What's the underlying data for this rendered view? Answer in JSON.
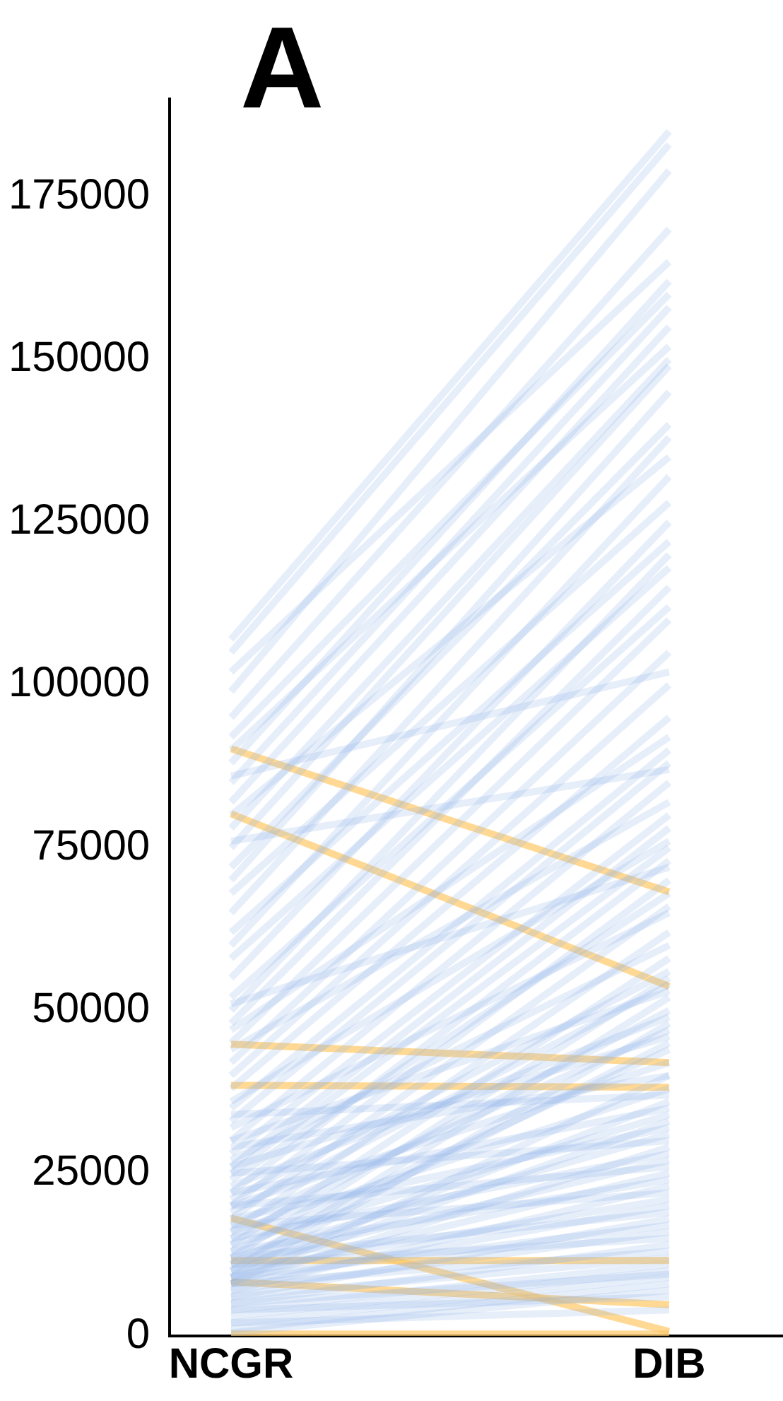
{
  "chart_data": {
    "type": "line",
    "categories": [
      "NCGR",
      "DIB"
    ],
    "annotations": [
      "A"
    ],
    "ylim": [
      0,
      190000
    ],
    "yticks": [
      0,
      25000,
      50000,
      75000,
      100000,
      125000,
      150000,
      175000
    ],
    "grid": false,
    "legend": false,
    "marker": "none",
    "line_style": "solid",
    "series": [
      {
        "color": "#ffc966",
        "values": [
          90200,
          68200
        ]
      },
      {
        "color": "#ffc966",
        "values": [
          80200,
          53700
        ]
      },
      {
        "color": "#ffc966",
        "values": [
          44800,
          42000
        ]
      },
      {
        "color": "#ffc966",
        "values": [
          38500,
          38200
        ]
      },
      {
        "color": "#ffc966",
        "values": [
          11600,
          11600
        ]
      },
      {
        "color": "#ffc966",
        "values": [
          8300,
          4800
        ]
      },
      {
        "color": "#ffc966",
        "values": [
          18100,
          700
        ]
      },
      {
        "color": "#ffc966",
        "values": [
          300,
          300
        ]
      },
      {
        "color": "#8fb3ea",
        "values": [
          107000,
          185000
        ]
      },
      {
        "color": "#8fb3ea",
        "values": [
          105000,
          183000
        ]
      },
      {
        "color": "#8fb3ea",
        "values": [
          99000,
          179000
        ]
      },
      {
        "color": "#8fb3ea",
        "values": [
          95000,
          170000
        ]
      },
      {
        "color": "#8fb3ea",
        "values": [
          102000,
          165000
        ]
      },
      {
        "color": "#8fb3ea",
        "values": [
          88000,
          162000
        ]
      },
      {
        "color": "#8fb3ea",
        "values": [
          92000,
          160000
        ]
      },
      {
        "color": "#8fb3ea",
        "values": [
          85000,
          158000
        ]
      },
      {
        "color": "#8fb3ea",
        "values": [
          82000,
          155000
        ]
      },
      {
        "color": "#8fb3ea",
        "values": [
          90000,
          152000
        ]
      },
      {
        "color": "#8fb3ea",
        "values": [
          78000,
          150000
        ]
      },
      {
        "color": "#8fb3ea",
        "values": [
          75000,
          149000
        ]
      },
      {
        "color": "#8fb3ea",
        "values": [
          70000,
          145000
        ]
      },
      {
        "color": "#8fb3ea",
        "values": [
          72000,
          140000
        ]
      },
      {
        "color": "#8fb3ea",
        "values": [
          65000,
          138000
        ]
      },
      {
        "color": "#8fb3ea",
        "values": [
          80000,
          135000
        ]
      },
      {
        "color": "#8fb3ea",
        "values": [
          60000,
          132000
        ]
      },
      {
        "color": "#8fb3ea",
        "values": [
          68000,
          128000
        ]
      },
      {
        "color": "#8fb3ea",
        "values": [
          55000,
          125000
        ]
      },
      {
        "color": "#8fb3ea",
        "values": [
          62000,
          122000
        ]
      },
      {
        "color": "#8fb3ea",
        "values": [
          50000,
          120000
        ]
      },
      {
        "color": "#8fb3ea",
        "values": [
          58000,
          118000
        ]
      },
      {
        "color": "#8fb3ea",
        "values": [
          48000,
          115000
        ]
      },
      {
        "color": "#8fb3ea",
        "values": [
          52000,
          112000
        ]
      },
      {
        "color": "#8fb3ea",
        "values": [
          45000,
          110000
        ]
      },
      {
        "color": "#8fb3ea",
        "values": [
          42000,
          105000
        ]
      },
      {
        "color": "#8fb3ea",
        "values": [
          86000,
          102000
        ]
      },
      {
        "color": "#8fb3ea",
        "values": [
          40000,
          100000
        ]
      },
      {
        "color": "#8fb3ea",
        "values": [
          38000,
          95000
        ]
      },
      {
        "color": "#8fb3ea",
        "values": [
          47000,
          92000
        ]
      },
      {
        "color": "#8fb3ea",
        "values": [
          35000,
          90000
        ]
      },
      {
        "color": "#8fb3ea",
        "values": [
          33000,
          88000
        ]
      },
      {
        "color": "#8fb3ea",
        "values": [
          76000,
          87000
        ]
      },
      {
        "color": "#8fb3ea",
        "values": [
          30000,
          85000
        ]
      },
      {
        "color": "#8fb3ea",
        "values": [
          44000,
          82000
        ]
      },
      {
        "color": "#8fb3ea",
        "values": [
          28000,
          80000
        ]
      },
      {
        "color": "#8fb3ea",
        "values": [
          26000,
          78000
        ]
      },
      {
        "color": "#8fb3ea",
        "values": [
          36000,
          76000
        ]
      },
      {
        "color": "#8fb3ea",
        "values": [
          25000,
          75000
        ]
      },
      {
        "color": "#8fb3ea",
        "values": [
          22000,
          73000
        ]
      },
      {
        "color": "#8fb3ea",
        "values": [
          51000,
          72000
        ]
      },
      {
        "color": "#8fb3ea",
        "values": [
          20000,
          70000
        ]
      },
      {
        "color": "#8fb3ea",
        "values": [
          24000,
          68000
        ]
      },
      {
        "color": "#8fb3ea",
        "values": [
          18000,
          66000
        ]
      },
      {
        "color": "#8fb3ea",
        "values": [
          32000,
          65000
        ]
      },
      {
        "color": "#8fb3ea",
        "values": [
          16000,
          62000
        ]
      },
      {
        "color": "#8fb3ea",
        "values": [
          27000,
          60000
        ]
      },
      {
        "color": "#8fb3ea",
        "values": [
          14000,
          58000
        ]
      },
      {
        "color": "#8fb3ea",
        "values": [
          21000,
          56000
        ]
      },
      {
        "color": "#8fb3ea",
        "values": [
          12000,
          55000
        ]
      },
      {
        "color": "#8fb3ea",
        "values": [
          19000,
          54000
        ]
      },
      {
        "color": "#8fb3ea",
        "values": [
          30000,
          53000
        ]
      },
      {
        "color": "#8fb3ea",
        "values": [
          10000,
          52000
        ]
      },
      {
        "color": "#8fb3ea",
        "values": [
          15000,
          50000
        ]
      },
      {
        "color": "#8fb3ea",
        "values": [
          23000,
          49000
        ]
      },
      {
        "color": "#8fb3ea",
        "values": [
          9000,
          48000
        ]
      },
      {
        "color": "#8fb3ea",
        "values": [
          17000,
          47000
        ]
      },
      {
        "color": "#8fb3ea",
        "values": [
          26000,
          46000
        ]
      },
      {
        "color": "#8fb3ea",
        "values": [
          11000,
          45000
        ]
      },
      {
        "color": "#8fb3ea",
        "values": [
          13000,
          44000
        ]
      },
      {
        "color": "#8fb3ea",
        "values": [
          20000,
          42000
        ]
      },
      {
        "color": "#8fb3ea",
        "values": [
          8000,
          40000
        ]
      },
      {
        "color": "#8fb3ea",
        "values": [
          29000,
          40000
        ]
      },
      {
        "color": "#8fb3ea",
        "values": [
          16000,
          38000
        ]
      },
      {
        "color": "#8fb3ea",
        "values": [
          34000,
          37000
        ]
      },
      {
        "color": "#8fb3ea",
        "values": [
          10000,
          36000
        ]
      },
      {
        "color": "#8fb3ea",
        "values": [
          22000,
          35000
        ]
      },
      {
        "color": "#8fb3ea",
        "values": [
          14000,
          34000
        ]
      },
      {
        "color": "#8fb3ea",
        "values": [
          9000,
          33000
        ]
      },
      {
        "color": "#8fb3ea",
        "values": [
          18000,
          32000
        ]
      },
      {
        "color": "#8fb3ea",
        "values": [
          12000,
          31000
        ]
      },
      {
        "color": "#8fb3ea",
        "values": [
          25000,
          30000
        ]
      },
      {
        "color": "#8fb3ea",
        "values": [
          8000,
          29000
        ]
      },
      {
        "color": "#8fb3ea",
        "values": [
          15000,
          28000
        ]
      },
      {
        "color": "#8fb3ea",
        "values": [
          11000,
          27000
        ]
      },
      {
        "color": "#8fb3ea",
        "values": [
          20000,
          26000
        ]
      },
      {
        "color": "#8fb3ea",
        "values": [
          9000,
          25000
        ]
      },
      {
        "color": "#8fb3ea",
        "values": [
          13000,
          24000
        ]
      },
      {
        "color": "#8fb3ea",
        "values": [
          7000,
          23000
        ]
      },
      {
        "color": "#8fb3ea",
        "values": [
          17000,
          22000
        ]
      },
      {
        "color": "#8fb3ea",
        "values": [
          10000,
          21000
        ]
      },
      {
        "color": "#8fb3ea",
        "values": [
          8000,
          20000
        ]
      },
      {
        "color": "#8fb3ea",
        "values": [
          12000,
          19000
        ]
      },
      {
        "color": "#8fb3ea",
        "values": [
          6000,
          18000
        ]
      },
      {
        "color": "#8fb3ea",
        "values": [
          9000,
          17000
        ]
      },
      {
        "color": "#8fb3ea",
        "values": [
          7000,
          16000
        ]
      },
      {
        "color": "#8fb3ea",
        "values": [
          11000,
          15000
        ]
      },
      {
        "color": "#8fb3ea",
        "values": [
          5000,
          14000
        ]
      },
      {
        "color": "#8fb3ea",
        "values": [
          8000,
          13000
        ]
      },
      {
        "color": "#8fb3ea",
        "values": [
          6000,
          12000
        ]
      },
      {
        "color": "#8fb3ea",
        "values": [
          4000,
          11000
        ]
      },
      {
        "color": "#8fb3ea",
        "values": [
          3000,
          10000
        ]
      },
      {
        "color": "#8fb3ea",
        "values": [
          5000,
          9500
        ]
      },
      {
        "color": "#8fb3ea",
        "values": [
          2000,
          9000
        ]
      },
      {
        "color": "#8fb3ea",
        "values": [
          1000,
          8000
        ]
      },
      {
        "color": "#8fb3ea",
        "values": [
          500,
          7000
        ]
      },
      {
        "color": "#8fb3ea",
        "values": [
          4000,
          6000
        ]
      },
      {
        "color": "#8fb3ea",
        "values": [
          2000,
          4000
        ]
      }
    ]
  }
}
